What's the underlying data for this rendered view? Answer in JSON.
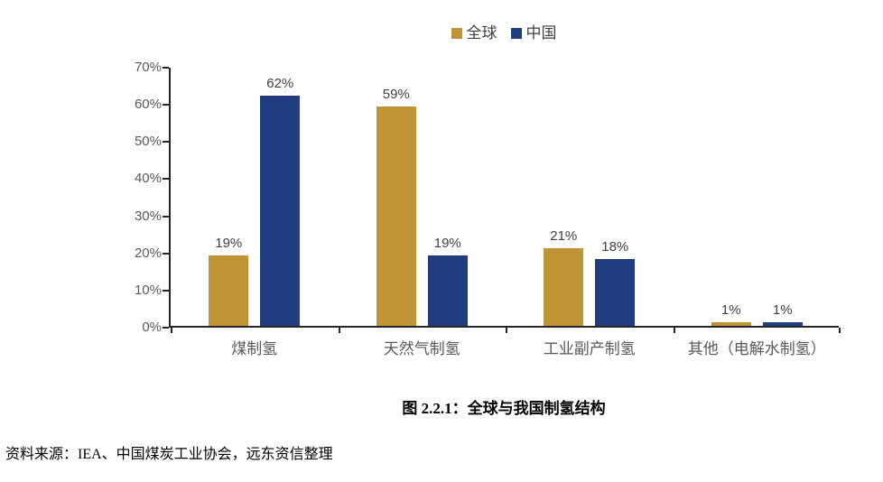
{
  "legend": {
    "items": [
      {
        "label": "全球",
        "color": "#BF9435"
      },
      {
        "label": "中国",
        "color": "#1F3D80"
      }
    ]
  },
  "chart_data": {
    "type": "bar",
    "title": "图 2.2.1：全球与我国制氢结构",
    "categories": [
      "煤制氢",
      "天然气制氢",
      "工业副产制氢",
      "其他（电解水制氢）"
    ],
    "series": [
      {
        "name": "全球",
        "color": "#BF9435",
        "values": [
          19,
          59,
          21,
          1
        ]
      },
      {
        "name": "中国",
        "color": "#1F3D80",
        "values": [
          62,
          19,
          18,
          1
        ]
      }
    ],
    "value_suffix": "%",
    "y_ticks": [
      "0%",
      "10%",
      "20%",
      "30%",
      "40%",
      "50%",
      "60%",
      "70%"
    ],
    "ylim": [
      0,
      70
    ],
    "grid": false,
    "legend_position": "top",
    "axis_color": "#262626",
    "tick_label_color": "#595959",
    "value_label_color": "#404040"
  },
  "caption": "图 2.2.1：全球与我国制氢结构",
  "source": "资料来源：IEA、中国煤炭工业协会，远东资信整理"
}
